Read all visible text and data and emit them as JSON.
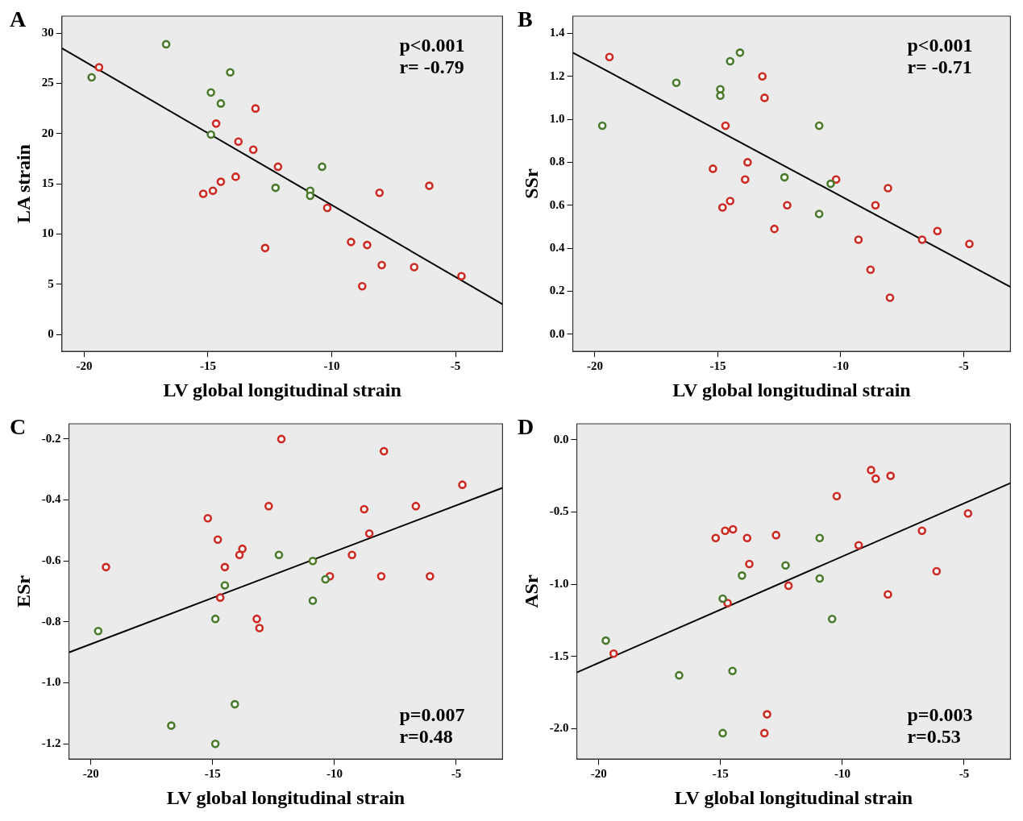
{
  "chart_data": [
    {
      "type": "scatter",
      "title": "A",
      "xlabel": "LV global longitudinal strain",
      "ylabel": "LA strain",
      "xlim": [
        -20.9,
        -3.1
      ],
      "xticks": [
        -20,
        -15,
        -10,
        -5
      ],
      "ylim": [
        -1.7,
        31.7
      ],
      "yticks": [
        0,
        5,
        10,
        15,
        20,
        25,
        30
      ],
      "annotations": [
        "p<0.001",
        "r= -0.79"
      ],
      "series": [
        {
          "type": "scatter",
          "marker": "circle",
          "color": "#4a7a2c",
          "x": [
            -16.69,
            -19.7,
            -14.1,
            -14.88,
            -14.48,
            -14.88,
            -10.39,
            -12.27,
            -10.87,
            -10.87
          ],
          "values": [
            28.9,
            25.6,
            26.1,
            24.1,
            23.0,
            19.9,
            16.7,
            14.6,
            14.3,
            13.8
          ]
        },
        {
          "type": "scatter",
          "marker": "circle",
          "color": "#cc2a22",
          "x": [
            -19.4,
            -13.08,
            -14.67,
            -13.77,
            -13.17,
            -12.17,
            -13.88,
            -14.48,
            -14.8,
            -15.19,
            -10.18,
            -8.07,
            -6.06,
            -9.22,
            -8.57,
            -12.69,
            -7.98,
            -6.67,
            -4.76,
            -8.77
          ],
          "values": [
            26.6,
            22.5,
            21.0,
            19.2,
            18.4,
            16.7,
            15.7,
            15.2,
            14.3,
            14.0,
            12.6,
            14.1,
            14.8,
            9.2,
            8.9,
            8.6,
            6.9,
            6.7,
            5.8,
            4.8
          ]
        },
        {
          "type": "line",
          "marker": "none",
          "color": "#000000",
          "x": [
            -20.9,
            -3.1
          ],
          "values": [
            28.5,
            3.0
          ]
        }
      ]
    },
    {
      "type": "scatter",
      "title": "B",
      "xlabel": "LV global longitudinal strain",
      "ylabel": "SSr",
      "xlim": [
        -20.9,
        -3.1
      ],
      "xticks": [
        -20,
        -15,
        -10,
        -5
      ],
      "ylim": [
        -0.08,
        1.48
      ],
      "yticks": [
        {
          "value": 0,
          "label": "0.0"
        },
        0.2,
        0.4,
        0.6,
        0.8,
        {
          "value": 1,
          "label": "1.0"
        },
        1.2,
        1.4
      ],
      "annotations": [
        "p<0.001",
        "r= -0.71"
      ],
      "series": [
        {
          "type": "scatter",
          "marker": "circle",
          "color": "#4a7a2c",
          "x": [
            -19.7,
            -16.69,
            -14.9,
            -14.9,
            -14.5,
            -14.1,
            -12.29,
            -10.88,
            -10.41,
            -10.88
          ],
          "values": [
            0.97,
            1.17,
            1.14,
            1.11,
            1.27,
            1.31,
            0.73,
            0.97,
            0.7,
            0.56
          ]
        },
        {
          "type": "scatter",
          "marker": "circle",
          "color": "#cc2a22",
          "x": [
            -19.41,
            -13.19,
            -13.1,
            -14.69,
            -13.79,
            -15.2,
            -13.89,
            -14.5,
            -14.81,
            -12.18,
            -12.7,
            -10.19,
            -9.28,
            -8.79,
            -8.59,
            -8.08,
            -8.0,
            -6.69,
            -6.07,
            -4.77
          ],
          "values": [
            1.29,
            1.2,
            1.1,
            0.97,
            0.8,
            0.77,
            0.72,
            0.62,
            0.59,
            0.6,
            0.49,
            0.72,
            0.44,
            0.3,
            0.6,
            0.68,
            0.17,
            0.44,
            0.48,
            0.42
          ]
        },
        {
          "type": "line",
          "marker": "none",
          "color": "#000000",
          "x": [
            -20.9,
            -3.1
          ],
          "values": [
            1.31,
            0.22
          ]
        }
      ]
    },
    {
      "type": "scatter",
      "title": "C",
      "xlabel": "LV global longitudinal strain",
      "ylabel": "ESr",
      "xlim": [
        -20.9,
        -3.1
      ],
      "xticks": [
        -20,
        -15,
        -10,
        -5
      ],
      "ylim": [
        -1.25,
        -0.15
      ],
      "yticks": [
        -1.2,
        {
          "value": -1,
          "label": "-1.0"
        },
        -0.8,
        -0.6,
        -0.4,
        -0.2
      ],
      "annotations": [
        "p=0.007",
        "r=0.48"
      ],
      "series": [
        {
          "type": "scatter",
          "marker": "circle",
          "color": "#4a7a2c",
          "x": [
            -12.28,
            -10.89,
            -10.37,
            -14.5,
            -10.89,
            -14.89,
            -19.7,
            -14.09,
            -16.7,
            -14.89
          ],
          "values": [
            -0.58,
            -0.6,
            -0.66,
            -0.68,
            -0.73,
            -0.79,
            -0.83,
            -1.07,
            -1.14,
            -1.2
          ]
        },
        {
          "type": "scatter",
          "marker": "circle",
          "color": "#cc2a22",
          "x": [
            -12.18,
            -7.97,
            -4.75,
            -12.7,
            -8.78,
            -6.66,
            -15.2,
            -8.57,
            -14.79,
            -13.78,
            -13.9,
            -9.28,
            -19.38,
            -14.5,
            -10.19,
            -8.08,
            -6.08,
            -14.69,
            -13.19,
            -13.08
          ],
          "values": [
            -0.2,
            -0.24,
            -0.35,
            -0.42,
            -0.43,
            -0.42,
            -0.46,
            -0.51,
            -0.53,
            -0.56,
            -0.58,
            -0.58,
            -0.62,
            -0.62,
            -0.65,
            -0.65,
            -0.65,
            -0.72,
            -0.79,
            -0.82
          ]
        },
        {
          "type": "line",
          "marker": "none",
          "color": "#000000",
          "x": [
            -20.9,
            -3.1
          ],
          "values": [
            -0.9,
            -0.36
          ]
        }
      ]
    },
    {
      "type": "scatter",
      "title": "D",
      "xlabel": "LV global longitudinal strain",
      "ylabel": "ASr",
      "xlim": [
        -20.9,
        -3.1
      ],
      "xticks": [
        -20,
        -15,
        -10,
        -5
      ],
      "ylim": [
        -2.21,
        0.11
      ],
      "yticks": [
        {
          "value": -2,
          "label": "-2.0"
        },
        -1.5,
        {
          "value": -1,
          "label": "-1.0"
        },
        -0.5,
        {
          "value": 0,
          "label": "0.0"
        }
      ],
      "annotations": [
        "p=0.003",
        "r=0.53"
      ],
      "series": [
        {
          "type": "scatter",
          "marker": "circle",
          "color": "#4a7a2c",
          "x": [
            -10.93,
            -12.33,
            -14.12,
            -10.93,
            -14.91,
            -10.42,
            -19.71,
            -16.7,
            -14.51,
            -14.91
          ],
          "values": [
            -0.68,
            -0.87,
            -0.94,
            -0.96,
            -1.1,
            -1.24,
            -1.39,
            -1.63,
            -1.6,
            -2.03
          ]
        },
        {
          "type": "scatter",
          "marker": "circle",
          "color": "#cc2a22",
          "x": [
            -8.82,
            -8.63,
            -8.02,
            -10.23,
            -4.84,
            -14.81,
            -14.49,
            -15.2,
            -13.91,
            -12.72,
            -6.73,
            -9.33,
            -13.82,
            -6.13,
            -12.21,
            -8.13,
            -14.71,
            -19.39,
            -13.09,
            -13.2
          ],
          "values": [
            -0.21,
            -0.27,
            -0.25,
            -0.39,
            -0.51,
            -0.63,
            -0.62,
            -0.68,
            -0.68,
            -0.66,
            -0.63,
            -0.73,
            -0.86,
            -0.91,
            -1.01,
            -1.07,
            -1.13,
            -1.48,
            -1.9,
            -2.03
          ]
        },
        {
          "type": "line",
          "marker": "none",
          "color": "#000000",
          "x": [
            -20.9,
            -3.1
          ],
          "values": [
            -1.61,
            -0.3
          ]
        }
      ]
    }
  ]
}
